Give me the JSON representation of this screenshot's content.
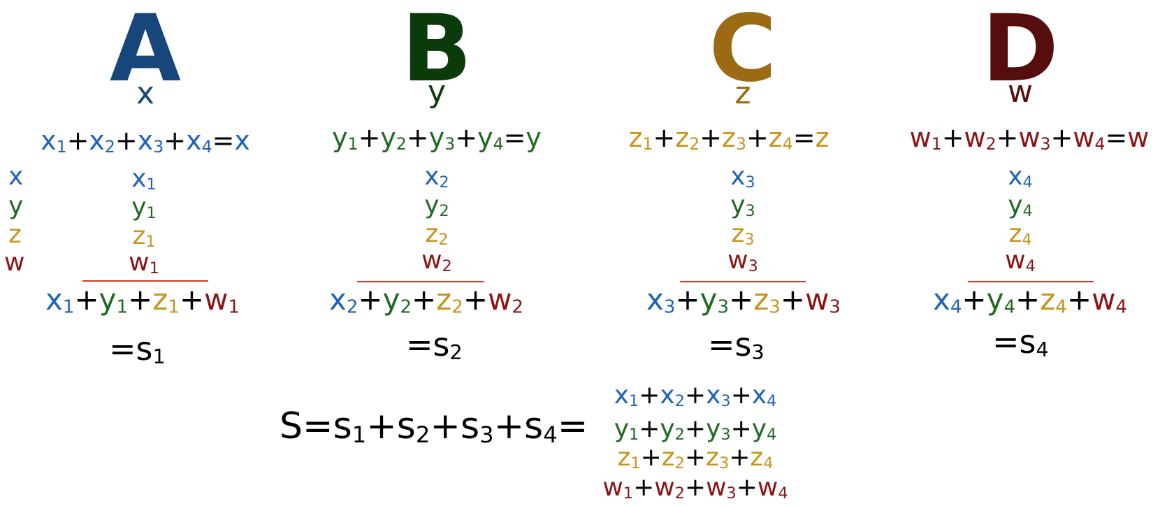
{
  "colors": {
    "x": "#1f63b8",
    "y": "#1f6a1f",
    "z": "#c8941f",
    "w": "#8b1414",
    "A": "#17467a",
    "B": "#0b3b0b",
    "C": "#9c6a12",
    "D": "#550d0d",
    "rule": "#d93a1a"
  },
  "groups": [
    {
      "letter": "A",
      "variable": "x",
      "equation": [
        [
          "x",
          "1"
        ],
        [
          "+",
          ""
        ],
        [
          "x",
          "2"
        ],
        [
          "+",
          ""
        ],
        [
          "x",
          "3"
        ],
        [
          "+",
          ""
        ],
        [
          "x",
          "4"
        ],
        [
          "=",
          ""
        ],
        [
          "x",
          ""
        ]
      ],
      "stack": [
        [
          "x",
          "1"
        ],
        [
          "y",
          "1"
        ],
        [
          "z",
          "1"
        ],
        [
          "w",
          "1"
        ]
      ],
      "sum": [
        [
          "x",
          "1"
        ],
        [
          "+",
          ""
        ],
        [
          "y",
          "1"
        ],
        [
          "+",
          ""
        ],
        [
          "z",
          "1"
        ],
        [
          "+",
          ""
        ],
        [
          "w",
          "1"
        ]
      ],
      "result": {
        "prefix": "=s",
        "sub": "1"
      }
    },
    {
      "letter": "B",
      "variable": "y",
      "equation": [
        [
          "y",
          "1"
        ],
        [
          "+",
          ""
        ],
        [
          "y",
          "2"
        ],
        [
          "+",
          ""
        ],
        [
          "y",
          "3"
        ],
        [
          "+",
          ""
        ],
        [
          "y",
          "4"
        ],
        [
          "=",
          ""
        ],
        [
          "y",
          ""
        ]
      ],
      "stack": [
        [
          "x",
          "2"
        ],
        [
          "y",
          "2"
        ],
        [
          "z",
          "2"
        ],
        [
          "w",
          "2"
        ]
      ],
      "sum": [
        [
          "x",
          "2"
        ],
        [
          "+",
          ""
        ],
        [
          "y",
          "2"
        ],
        [
          "+",
          ""
        ],
        [
          "z",
          "2"
        ],
        [
          "+",
          ""
        ],
        [
          "w",
          "2"
        ]
      ],
      "result": {
        "prefix": "=s",
        "sub": "2"
      }
    },
    {
      "letter": "C",
      "variable": "z",
      "equation": [
        [
          "z",
          "1"
        ],
        [
          "+",
          ""
        ],
        [
          "z",
          "2"
        ],
        [
          "+",
          ""
        ],
        [
          "z",
          "3"
        ],
        [
          "+",
          ""
        ],
        [
          "z",
          "4"
        ],
        [
          "=",
          ""
        ],
        [
          "z",
          ""
        ]
      ],
      "stack": [
        [
          "x",
          "3"
        ],
        [
          "y",
          "3"
        ],
        [
          "z",
          "3"
        ],
        [
          "w",
          "3"
        ]
      ],
      "sum": [
        [
          "x",
          "3"
        ],
        [
          "+",
          ""
        ],
        [
          "y",
          "3"
        ],
        [
          "+",
          ""
        ],
        [
          "z",
          "3"
        ],
        [
          "+",
          ""
        ],
        [
          "w",
          "3"
        ]
      ],
      "result": {
        "prefix": "=s",
        "sub": "3"
      }
    },
    {
      "letter": "D",
      "variable": "w",
      "equation": [
        [
          "w",
          "1"
        ],
        [
          "+",
          ""
        ],
        [
          "w",
          "2"
        ],
        [
          "+",
          ""
        ],
        [
          "w",
          "3"
        ],
        [
          "+",
          ""
        ],
        [
          "w",
          "4"
        ],
        [
          "=",
          ""
        ],
        [
          "w",
          ""
        ]
      ],
      "stack": [
        [
          "x",
          "4"
        ],
        [
          "y",
          "4"
        ],
        [
          "z",
          "4"
        ],
        [
          "w",
          "4"
        ]
      ],
      "sum": [
        [
          "x",
          "4"
        ],
        [
          "+",
          ""
        ],
        [
          "y",
          "4"
        ],
        [
          "+",
          ""
        ],
        [
          "z",
          "4"
        ],
        [
          "+",
          ""
        ],
        [
          "w",
          "4"
        ]
      ],
      "result": {
        "prefix": "=s",
        "sub": "4"
      }
    }
  ],
  "side_labels": [
    "x",
    "y",
    "z",
    "w"
  ],
  "total": {
    "lhs": [
      [
        "S",
        ""
      ],
      [
        "=",
        ""
      ],
      [
        "s",
        "1"
      ],
      [
        "+",
        ""
      ],
      [
        "s",
        "2"
      ],
      [
        "+",
        ""
      ],
      [
        "s",
        "3"
      ],
      [
        "+",
        ""
      ],
      [
        "s",
        "4"
      ],
      [
        "=",
        ""
      ]
    ],
    "expansion": [
      [
        [
          "x",
          "1"
        ],
        [
          "+",
          ""
        ],
        [
          "x",
          "2"
        ],
        [
          "+",
          ""
        ],
        [
          "x",
          "3"
        ],
        [
          "+",
          ""
        ],
        [
          "x",
          "4"
        ]
      ],
      [
        [
          "y",
          "1"
        ],
        [
          "+",
          ""
        ],
        [
          "y",
          "2"
        ],
        [
          "+",
          ""
        ],
        [
          "y",
          "3"
        ],
        [
          "+",
          ""
        ],
        [
          "y",
          "4"
        ]
      ],
      [
        [
          "z",
          "1"
        ],
        [
          "+",
          ""
        ],
        [
          "z",
          "2"
        ],
        [
          "+",
          ""
        ],
        [
          "z",
          "3"
        ],
        [
          "+",
          ""
        ],
        [
          "z",
          "4"
        ]
      ],
      [
        [
          "w",
          "1"
        ],
        [
          "+",
          ""
        ],
        [
          "w",
          "2"
        ],
        [
          "+",
          ""
        ],
        [
          "w",
          "3"
        ],
        [
          "+",
          ""
        ],
        [
          "w",
          "4"
        ]
      ]
    ]
  }
}
